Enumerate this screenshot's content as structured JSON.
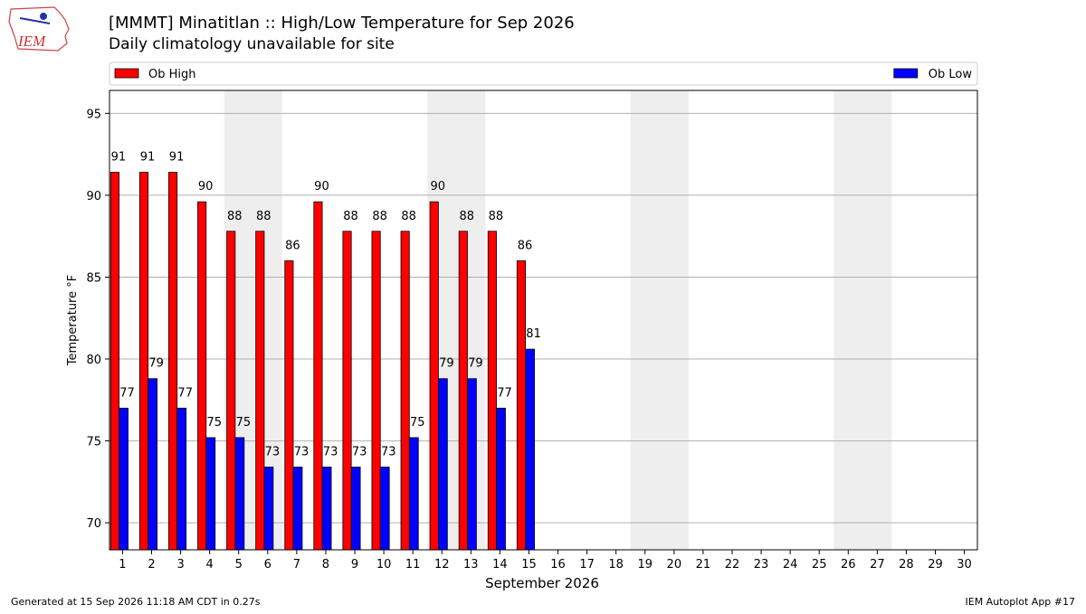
{
  "chart_data": {
    "type": "bar",
    "title": "[MMMT] Minatitlan :: High/Low Temperature for Sep 2026",
    "subtitle": "Daily climatology unavailable for site",
    "xlabel": "September 2026",
    "ylabel": "Temperature °F",
    "x": [
      1,
      2,
      3,
      4,
      5,
      6,
      7,
      8,
      9,
      10,
      11,
      12,
      13,
      14,
      15
    ],
    "series": [
      {
        "name": "Ob High",
        "color": "#ff0000",
        "values": [
          91.4,
          91.4,
          91.4,
          89.6,
          87.8,
          87.8,
          86.0,
          89.6,
          87.8,
          87.8,
          87.8,
          89.6,
          87.8,
          87.8,
          86.0
        ],
        "value_labels": [
          "91",
          "91",
          "91",
          "90",
          "88",
          "88",
          "86",
          "90",
          "88",
          "88",
          "88",
          "90",
          "88",
          "88",
          "86"
        ]
      },
      {
        "name": "Ob Low",
        "color": "#0000ff",
        "values": [
          77.0,
          78.8,
          77.0,
          75.2,
          75.2,
          73.4,
          73.4,
          73.4,
          73.4,
          73.4,
          75.2,
          78.8,
          78.8,
          77.0,
          80.6
        ],
        "value_labels": [
          "77",
          "79",
          "77",
          "75",
          "75",
          "73",
          "73",
          "73",
          "73",
          "73",
          "75",
          "79",
          "79",
          "77",
          "81"
        ]
      }
    ],
    "xlim": [
      0.55,
      30.45
    ],
    "xticks": [
      1,
      2,
      3,
      4,
      5,
      6,
      7,
      8,
      9,
      10,
      11,
      12,
      13,
      14,
      15,
      16,
      17,
      18,
      19,
      20,
      21,
      22,
      23,
      24,
      25,
      26,
      27,
      28,
      29,
      30
    ],
    "ylim": [
      68.35,
      96.4
    ],
    "yticks": [
      70,
      75,
      80,
      85,
      90,
      95
    ],
    "grid": true,
    "shaded_spans": [
      [
        4.5,
        6.5
      ],
      [
        11.5,
        13.5
      ],
      [
        18.5,
        20.5
      ],
      [
        25.5,
        27.5
      ]
    ],
    "shade_color": "#eeeeee"
  },
  "footer": {
    "left": "Generated at 15 Sep 2026 11:18 AM CDT in 0.27s",
    "right": "IEM Autoplot App #17"
  },
  "logo_text": "IEM"
}
